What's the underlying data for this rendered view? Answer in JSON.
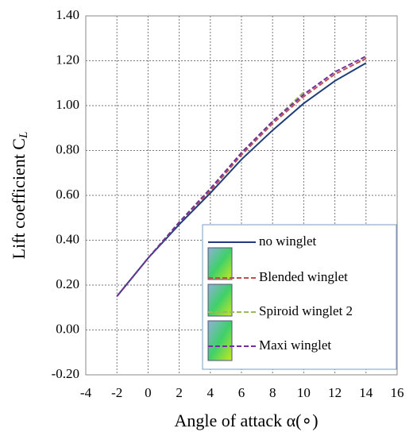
{
  "chart_data": {
    "type": "line",
    "x_label": "Angle of attack α(∘)",
    "y_label": "Lift coefficient C",
    "y_label_sub": "L",
    "x": [
      -2,
      0,
      2,
      4,
      6,
      8,
      10,
      12,
      14
    ],
    "series": [
      {
        "name": "no winglet",
        "color": "#1f3d7a",
        "dash": "solid",
        "values": [
          0.15,
          0.32,
          0.47,
          0.61,
          0.76,
          0.89,
          1.01,
          1.11,
          1.19
        ]
      },
      {
        "name": "Blended winglet",
        "color": "#c0504d",
        "dash": "dashed",
        "values": [
          0.15,
          0.32,
          0.48,
          0.62,
          0.78,
          0.92,
          1.04,
          1.14,
          1.21
        ]
      },
      {
        "name": "Spiroid winglet 2",
        "color": "#9bbb59",
        "dash": "dashed",
        "values": [
          0.15,
          0.32,
          0.48,
          0.63,
          0.79,
          0.93,
          1.06,
          null,
          null
        ]
      },
      {
        "name": "Maxi winglet",
        "color": "#7030a0",
        "dash": "dashed",
        "values": [
          0.15,
          0.32,
          0.48,
          0.63,
          0.79,
          0.93,
          1.05,
          1.15,
          1.22
        ]
      }
    ],
    "xlim": [
      -4,
      16
    ],
    "xticks": [
      -4,
      -2,
      0,
      2,
      4,
      6,
      8,
      10,
      12,
      14,
      16
    ],
    "ylim": [
      -0.2,
      1.4
    ],
    "yticks": [
      {
        "value": -0.2,
        "label": "-0.20"
      },
      {
        "value": 0,
        "label": "0.00"
      },
      {
        "value": 0.2,
        "label": "0.20"
      },
      {
        "value": 0.4,
        "label": "0.40"
      },
      {
        "value": 0.6,
        "label": "0.60"
      },
      {
        "value": 0.8,
        "label": "0.80"
      },
      {
        "value": 1.0,
        "label": "1.00"
      },
      {
        "value": 1.2,
        "label": "1.20"
      },
      {
        "value": 1.4,
        "label": "1.40"
      }
    ],
    "grid": true
  }
}
